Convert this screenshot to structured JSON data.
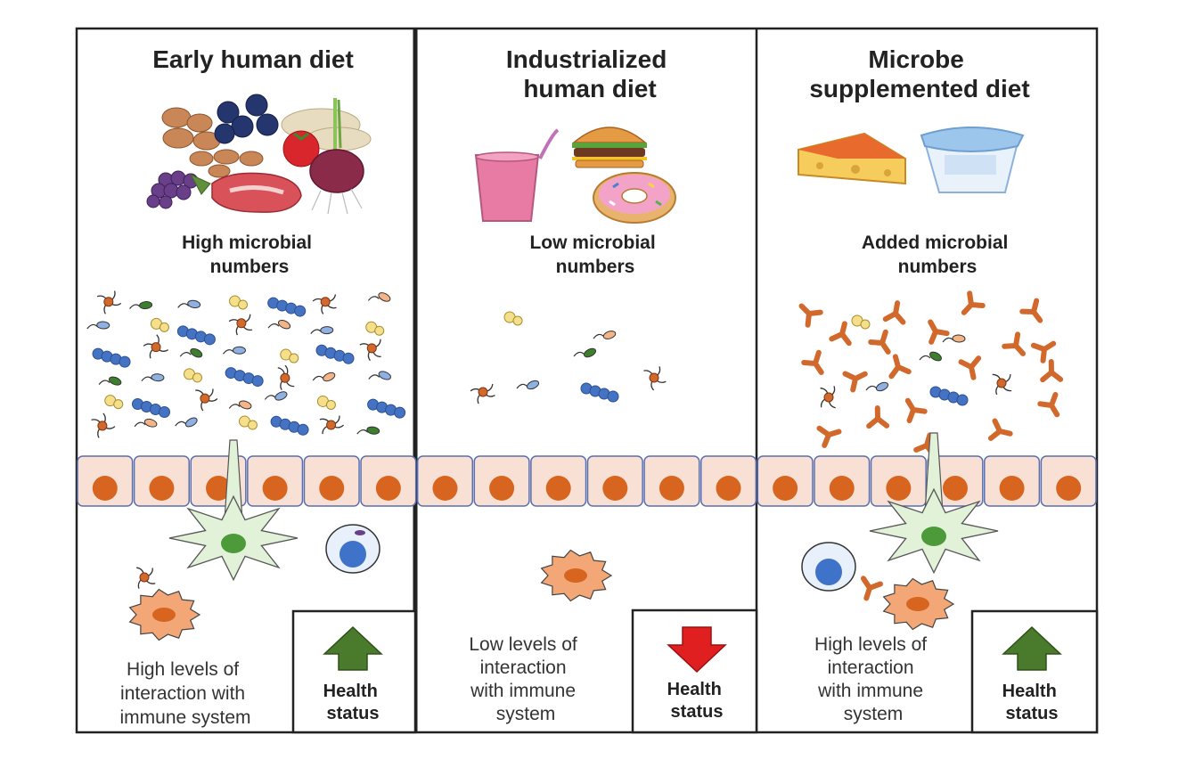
{
  "panels": [
    {
      "title_lines": [
        "Early human diet"
      ],
      "microbe_lines": [
        "High microbial",
        "numbers"
      ],
      "interaction_lines": [
        "High levels of",
        "interaction with",
        "immune system"
      ],
      "health_lines": [
        "Health",
        "status"
      ],
      "health_arrow": "up-arrow",
      "arrow_color": "#4a7a2c"
    },
    {
      "title_lines": [
        "Industrialized",
        "human diet"
      ],
      "microbe_lines": [
        "Low microbial",
        "numbers"
      ],
      "interaction_lines": [
        "Low levels of",
        "interaction",
        "with immune",
        "system"
      ],
      "health_lines": [
        "Health",
        "status"
      ],
      "health_arrow": "down-arrow",
      "arrow_color": "#e02020"
    },
    {
      "title_lines": [
        "Microbe",
        "supplemented diet"
      ],
      "microbe_lines": [
        "Added microbial",
        "numbers"
      ],
      "interaction_lines": [
        "High levels of",
        "interaction",
        "with immune",
        "system"
      ],
      "health_lines": [
        "Health",
        "status"
      ],
      "health_arrow": "up-arrow",
      "arrow_color": "#4a7a2c"
    }
  ],
  "colors": {
    "epithelium": "#f9e0d4",
    "epithelium_border": "#5a6fae",
    "nucleus": "#d8651f",
    "dendritic_cell": "#e2f2d8",
    "dendritic_nucleus": "#4c9a3a",
    "macrophage": "#f3a777",
    "lymphocyte_nucleus": "#3f72c9",
    "blue_bacteria": "#4573c4",
    "green_bacteria": "#3d7f2e",
    "yellow_bacteria": "#f6df8a",
    "orange_microbe": "#d2692c"
  }
}
